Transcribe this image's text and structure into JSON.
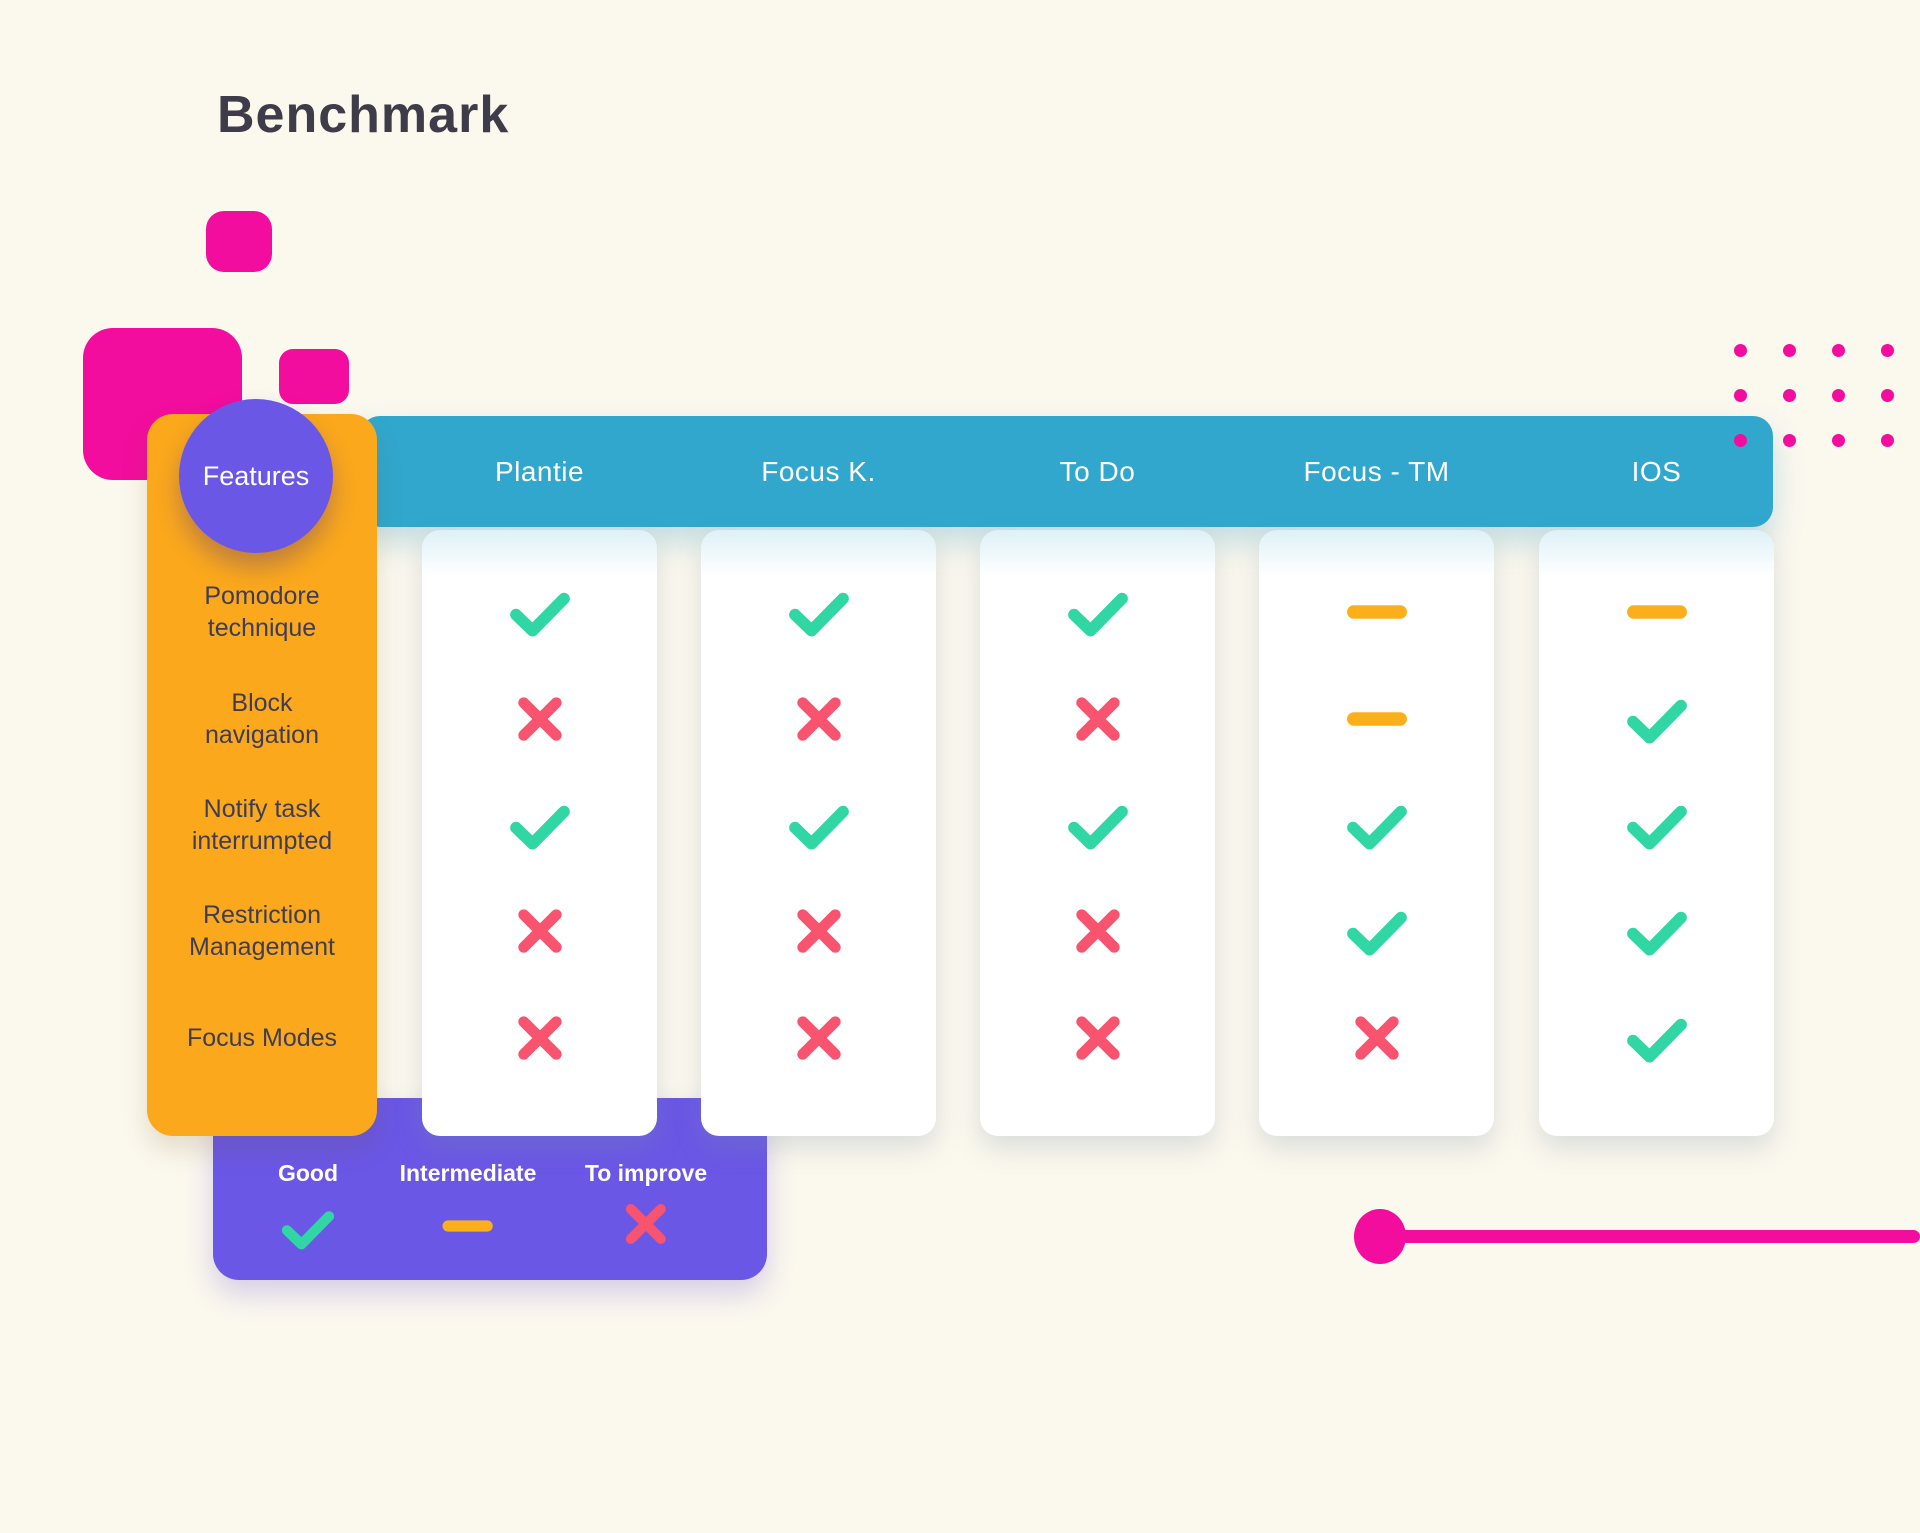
{
  "page": {
    "title": "Benchmark"
  },
  "colors": {
    "background": "#FBF8EE",
    "title": "#3E3C48",
    "magenta": "#F30D9E",
    "orange": "#FBA81C",
    "purple": "#6A57E6",
    "teal": "#31A7CE",
    "card": "#FFFFFF",
    "feature_text": "#3F3D56",
    "check": "#30D6A3",
    "cross": "#F8536F",
    "dash": "#FBB01B"
  },
  "table": {
    "features_label": "Features",
    "columns": [
      "Plantie",
      "Focus K.",
      "To Do",
      "Focus - TM",
      "IOS"
    ],
    "rows": [
      {
        "feature": "Pomodore technique",
        "values": [
          "check",
          "check",
          "check",
          "dash",
          "dash"
        ]
      },
      {
        "feature": "Block navigation",
        "values": [
          "cross",
          "cross",
          "cross",
          "dash",
          "check"
        ]
      },
      {
        "feature": "Notify task interrumpted",
        "values": [
          "check",
          "check",
          "check",
          "check",
          "check"
        ]
      },
      {
        "feature": "Restriction Management",
        "values": [
          "cross",
          "cross",
          "cross",
          "check",
          "check"
        ]
      },
      {
        "feature": "Focus Modes",
        "values": [
          "cross",
          "cross",
          "cross",
          "cross",
          "check"
        ]
      }
    ]
  },
  "legend": {
    "items": [
      {
        "label": "Good",
        "mark": "check"
      },
      {
        "label": "Intermediate",
        "mark": "dash"
      },
      {
        "label": "To improve",
        "mark": "cross"
      }
    ]
  }
}
